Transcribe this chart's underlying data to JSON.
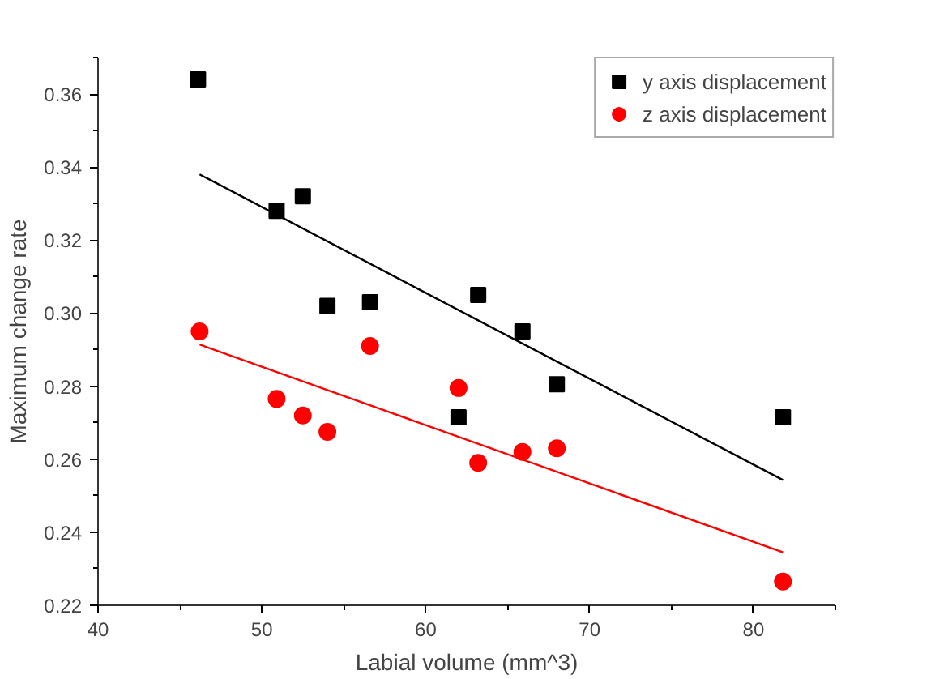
{
  "chart_data": {
    "type": "scatter",
    "xlabel": "Labial volume (mm^3)",
    "ylabel": "Maximum change rate",
    "xlim": [
      40,
      85
    ],
    "ylim": [
      0.22,
      0.37
    ],
    "xticks": [
      40,
      50,
      60,
      70,
      80
    ],
    "yticks": [
      {
        "value": 0.22,
        "label": "0.22"
      },
      {
        "value": 0.24,
        "label": "0.24"
      },
      {
        "value": 0.26,
        "label": "0.26"
      },
      {
        "value": 0.28,
        "label": "0.28"
      },
      {
        "value": 0.3,
        "label": "0.30"
      },
      {
        "value": 0.32,
        "label": "0.32"
      },
      {
        "value": 0.34,
        "label": "0.34"
      },
      {
        "value": 0.36,
        "label": "0.36"
      }
    ],
    "grid": false,
    "legend": "top right",
    "series": [
      {
        "name": "y axis displacement",
        "color": "#000000",
        "marker": "square",
        "x": [
          46.1,
          50.9,
          52.5,
          54.0,
          56.6,
          62.0,
          63.2,
          65.9,
          68.0,
          81.8
        ],
        "values": [
          0.364,
          0.328,
          0.332,
          0.302,
          0.303,
          0.2715,
          0.305,
          0.295,
          0.2805,
          0.2715
        ]
      },
      {
        "name": "z axis displacement",
        "color": "#ff0000",
        "marker": "circle",
        "x": [
          46.2,
          50.9,
          52.5,
          54.0,
          56.6,
          62.0,
          63.2,
          65.9,
          68.0,
          81.8
        ],
        "values": [
          0.295,
          0.2765,
          0.272,
          0.2675,
          0.291,
          0.2795,
          0.259,
          0.262,
          0.263,
          0.2265
        ]
      },
      {
        "type": "line",
        "color": "#000000",
        "x": [
          46.2,
          81.8
        ],
        "values": [
          0.338,
          0.2543
        ]
      },
      {
        "type": "line",
        "color": "#ff0000",
        "x": [
          46.2,
          81.8
        ],
        "values": [
          0.2914,
          0.2345
        ]
      }
    ]
  }
}
